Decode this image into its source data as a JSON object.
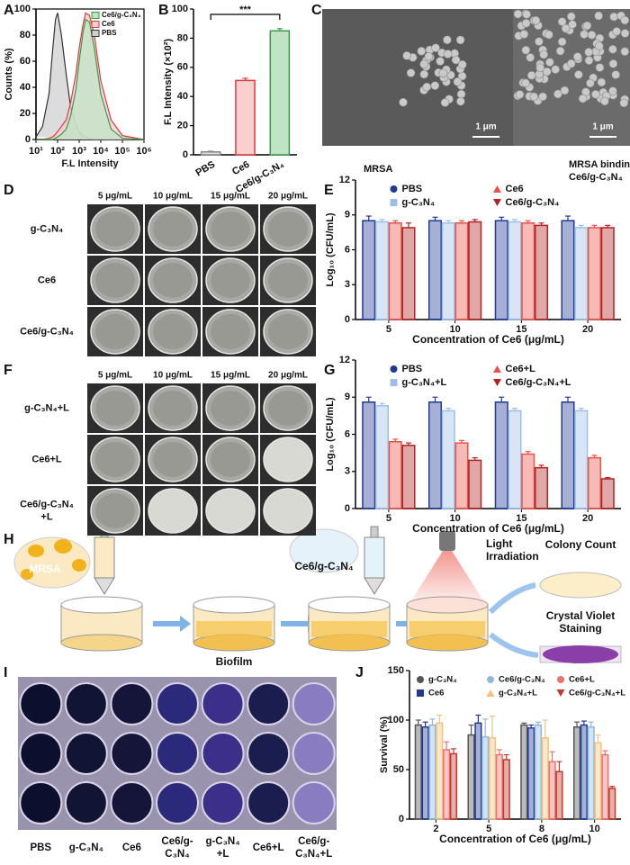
{
  "chart_data": [
    {
      "type": "line",
      "x_label": "F.L Intensity",
      "y_label": "Counts (%)",
      "log_x": true,
      "legend": "upper right",
      "x": [
        10,
        20,
        40,
        60,
        80,
        100,
        150,
        250,
        400,
        700,
        1000,
        1500,
        2000,
        3000,
        5000,
        10000,
        30000,
        100000,
        1000000
      ],
      "series": [
        {
          "name": "Ce6/g-C₃N₄",
          "color": "#3a9a4a",
          "fill": "#bfe3c4",
          "values": [
            0,
            0,
            0,
            0,
            1,
            2,
            4,
            8,
            18,
            38,
            60,
            82,
            92,
            90,
            70,
            35,
            8,
            1,
            0
          ]
        },
        {
          "name": "Ce6",
          "color": "#e0393e",
          "fill": "#f7cccc",
          "values": [
            0,
            0,
            1,
            2,
            4,
            6,
            10,
            15,
            28,
            50,
            70,
            88,
            97,
            95,
            80,
            45,
            15,
            3,
            0
          ]
        },
        {
          "name": "PBS",
          "color": "#333333",
          "fill": "#d0d0d0",
          "values": [
            2,
            10,
            35,
            70,
            92,
            97,
            80,
            50,
            25,
            12,
            6,
            3,
            2,
            1,
            0,
            0,
            0,
            0,
            0
          ]
        }
      ],
      "xlim": [
        10,
        1000000
      ],
      "xticks": [
        {
          "value": 10,
          "label": "10¹"
        },
        {
          "value": 100,
          "label": "10²"
        },
        {
          "value": 1000,
          "label": "10³"
        },
        {
          "value": 10000,
          "label": "10⁴"
        },
        {
          "value": 100000,
          "label": "10⁵"
        },
        {
          "value": 1000000,
          "label": "10⁶"
        }
      ],
      "ylim": [
        0,
        100
      ],
      "yticks": [
        0,
        20,
        40,
        60,
        80,
        100
      ]
    },
    {
      "type": "bar",
      "y_label": "F.L Intensity (×10²)",
      "annotation": "***",
      "categories": [
        "PBS",
        "Ce6",
        "Ce6/g-C₃N₄"
      ],
      "values": [
        2,
        51,
        85
      ],
      "errors": [
        0.5,
        1.5,
        1.5
      ],
      "colors": [
        "#888888",
        "#e0393e",
        "#3a9a4a"
      ],
      "fills": [
        "#dddddd",
        "#f9d0d0",
        "#bfe3c4"
      ],
      "ylim": [
        0,
        100
      ],
      "yticks": [
        0,
        20,
        40,
        60,
        80,
        100
      ]
    },
    {
      "type": "bar",
      "x_label": "Concentration of Ce6 (μg/mL)",
      "y_label": "Log₁₀ (CFU/mL)",
      "legend": "upper center",
      "categories": [
        "5",
        "10",
        "15",
        "20"
      ],
      "series": [
        {
          "name": "PBS",
          "color": "#1f3a93",
          "marker": "circle",
          "values": [
            8.5,
            8.5,
            8.5,
            8.5
          ],
          "errors": [
            0.4,
            0.3,
            0.3,
            0.4
          ]
        },
        {
          "name": "g-C₃N₄",
          "color": "#9dbfe6",
          "marker": "square",
          "values": [
            8.4,
            8.3,
            8.4,
            7.9
          ],
          "errors": [
            0.2,
            0.2,
            0.2,
            0.2
          ]
        },
        {
          "name": "Ce6",
          "color": "#e8524a",
          "marker": "triangle-up",
          "values": [
            8.3,
            8.3,
            8.3,
            7.9
          ],
          "errors": [
            0.2,
            0.2,
            0.2,
            0.2
          ]
        },
        {
          "name": "Ce6/g-C₃N₄",
          "color": "#b22222",
          "marker": "triangle-down",
          "values": [
            7.9,
            8.4,
            8.1,
            7.9
          ],
          "errors": [
            0.4,
            0.2,
            0.2,
            0.2
          ]
        }
      ],
      "ylim": [
        0,
        12
      ],
      "yticks": [
        0,
        3,
        6,
        9,
        12
      ]
    },
    {
      "type": "bar",
      "x_label": "Concentration of Ce6 (μg/mL)",
      "y_label": "Log₁₀ (CFU/mL)",
      "legend": "upper center",
      "categories": [
        "5",
        "10",
        "15",
        "20"
      ],
      "series": [
        {
          "name": "PBS",
          "color": "#1f3a93",
          "marker": "circle",
          "values": [
            8.6,
            8.6,
            8.6,
            8.6
          ],
          "errors": [
            0.4,
            0.4,
            0.4,
            0.4
          ]
        },
        {
          "name": "g-C₃N₄+L",
          "color": "#9dbfe6",
          "marker": "square",
          "values": [
            8.3,
            7.9,
            7.9,
            7.9
          ],
          "errors": [
            0.2,
            0.2,
            0.2,
            0.2
          ]
        },
        {
          "name": "Ce6+L",
          "color": "#e8524a",
          "marker": "triangle-up",
          "values": [
            5.4,
            5.3,
            4.4,
            4.1
          ],
          "errors": [
            0.2,
            0.2,
            0.2,
            0.2
          ]
        },
        {
          "name": "Ce6/g-C₃N₄+L",
          "color": "#b22222",
          "marker": "triangle-down",
          "values": [
            5.1,
            3.9,
            3.3,
            2.4
          ],
          "errors": [
            0.2,
            0.2,
            0.2,
            0.1
          ]
        }
      ],
      "ylim": [
        0,
        12
      ],
      "yticks": [
        0,
        3,
        6,
        9,
        12
      ]
    },
    {
      "type": "bar",
      "x_label": "Concentration of Ce6 (μg/mL)",
      "y_label": "Survival (%)",
      "legend": "upper left",
      "categories": [
        "2",
        "5",
        "8",
        "10"
      ],
      "series": [
        {
          "name": "g-C₃N₄",
          "color": "#555555",
          "marker": "circle",
          "values": [
            95,
            85,
            95,
            93
          ],
          "errors": [
            5,
            10,
            2,
            5
          ]
        },
        {
          "name": "Ce6",
          "color": "#1f3a93",
          "marker": "square",
          "values": [
            93,
            97,
            92,
            95
          ],
          "errors": [
            5,
            8,
            3,
            4
          ]
        },
        {
          "name": "Ce6/g-C₃N₄",
          "color": "#8fb8e0",
          "marker": "circle",
          "values": [
            95,
            83,
            95,
            93
          ],
          "errors": [
            6,
            18,
            3,
            5
          ]
        },
        {
          "name": "g-C₃N₄+L",
          "color": "#f2c27a",
          "marker": "triangle-up",
          "values": [
            97,
            82,
            82,
            77
          ],
          "errors": [
            8,
            22,
            18,
            8
          ]
        },
        {
          "name": "Ce6+L",
          "color": "#ee7070",
          "marker": "circle",
          "values": [
            70,
            65,
            58,
            65
          ],
          "errors": [
            8,
            5,
            10,
            4
          ]
        },
        {
          "name": "Ce6/g-C₃N₄+L",
          "color": "#c0392b",
          "marker": "triangle-down",
          "values": [
            66,
            60,
            48,
            31
          ],
          "errors": [
            5,
            5,
            10,
            2
          ]
        }
      ],
      "ylim": [
        0,
        150
      ],
      "yticks": [
        0,
        50,
        100,
        150
      ]
    }
  ],
  "figure": {
    "panel_labels": [
      "A",
      "B",
      "C",
      "D",
      "E",
      "F",
      "G",
      "H",
      "I",
      "J"
    ],
    "c": {
      "scale_bars": [
        "1 μm",
        "1 μm"
      ],
      "captions": [
        [
          "MRSA"
        ],
        [
          "MRSA binding with",
          "Ce6/g-C₃N₄"
        ]
      ]
    },
    "d": {
      "columns": [
        "5 μg/mL",
        "10 μg/mL",
        "15 μg/mL",
        "20 μg/mL"
      ],
      "rows": [
        [
          "g-C₃N₄"
        ],
        [
          "Ce6"
        ],
        [
          "Ce6/g-C₃N₄"
        ]
      ]
    },
    "f": {
      "columns": [
        "5 μg/mL",
        "10 μg/mL",
        "15 μg/mL",
        "20 μg/mL"
      ],
      "rows": [
        [
          "g-C₃N₄+L"
        ],
        [
          "Ce6+L"
        ],
        [
          "Ce6/g-C₃N₄",
          "+L"
        ]
      ]
    },
    "h": {
      "mrsa": "MRSA",
      "agent": "Ce6/g-C₃N₄",
      "biofilm": "Biofilm",
      "light": [
        "Light",
        "Irradiation"
      ],
      "colony": "Colony Count",
      "staining": [
        "Crystal Violet",
        "Staining"
      ]
    },
    "i": {
      "labels": [
        [
          "PBS"
        ],
        [
          "g-C₃N₄"
        ],
        [
          "Ce6"
        ],
        [
          "Ce6/g-",
          "C₃N₄"
        ],
        [
          "g-C₃N₄",
          "+L"
        ],
        [
          "Ce6+L"
        ],
        [
          "Ce6/g-",
          "C₃N₄+L"
        ]
      ]
    }
  }
}
